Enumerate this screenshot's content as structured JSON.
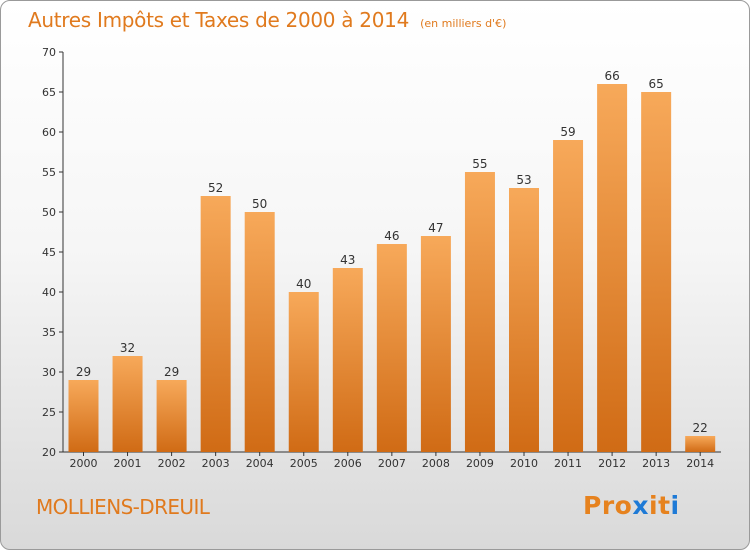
{
  "header": {
    "title": "Autres Impôts et Taxes de 2000 à 2014",
    "unit": "(en milliers d'€)"
  },
  "footer": {
    "commune": "MOLLIENS-DREUIL",
    "logo": "Proxiti",
    "logo_colors": [
      "#e6821e",
      "#e6821e",
      "#e6821e",
      "#1e7ad6",
      "#e6821e",
      "#e6821e",
      "#1e7ad6",
      "#e6821e"
    ]
  },
  "colors": {
    "bar_light": "#f7a95a",
    "bar_dark": "#d06b15",
    "text_orange": "#e07a1e",
    "axis": "#333333"
  },
  "chart_data": {
    "type": "bar",
    "title": "Autres Impôts et Taxes de 2000 à 2014",
    "subtitle": "(en milliers d'€)",
    "xlabel": "",
    "ylabel": "",
    "ylim": [
      20,
      70
    ],
    "yticks": [
      20,
      25,
      30,
      35,
      40,
      45,
      50,
      55,
      60,
      65,
      70
    ],
    "grid": false,
    "categories": [
      "2000",
      "2001",
      "2002",
      "2003",
      "2004",
      "2005",
      "2006",
      "2007",
      "2008",
      "2009",
      "2010",
      "2011",
      "2012",
      "2013",
      "2014"
    ],
    "values": [
      29,
      32,
      29,
      52,
      50,
      40,
      43,
      46,
      47,
      55,
      53,
      59,
      66,
      65,
      22
    ]
  }
}
